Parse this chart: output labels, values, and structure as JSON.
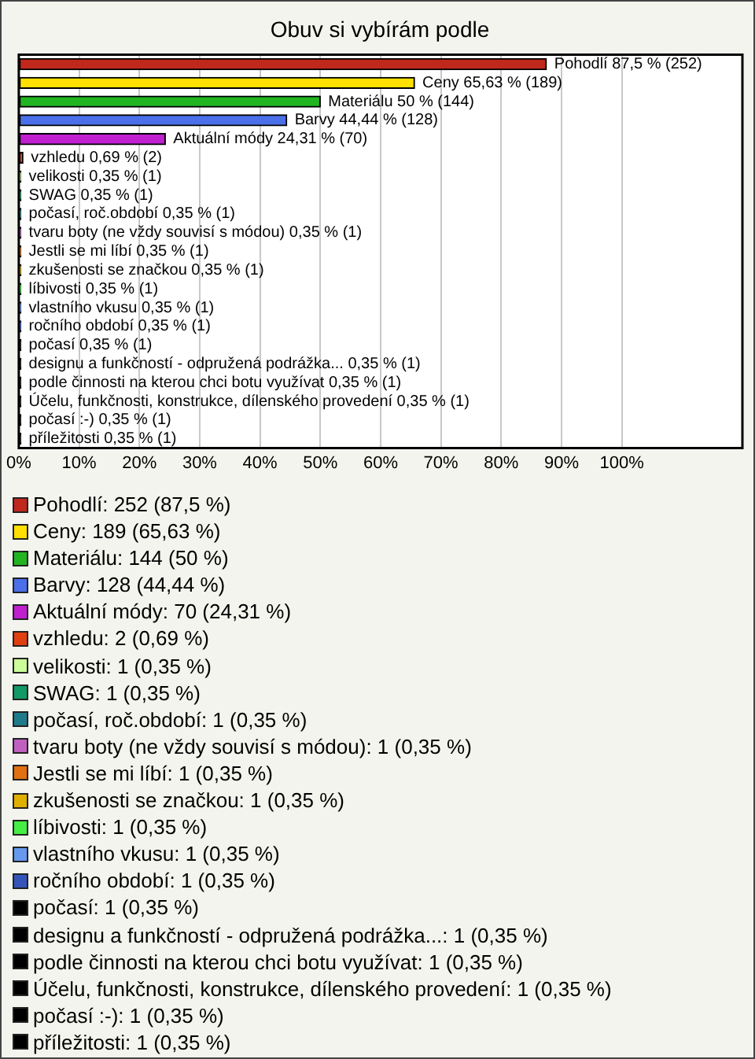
{
  "chart_data": {
    "type": "bar",
    "orientation": "horizontal",
    "title": "Obuv si vybírám podle",
    "categories": [
      "Pohodlí",
      "Ceny",
      "Materiálu",
      "Barvy",
      "Aktuální módy",
      "vzhledu",
      "velikosti",
      "SWAG",
      "počasí, roč.období",
      "tvaru boty (ne vždy souvisí s módou)",
      "Jestli se mi líbí",
      "zkušenosti se značkou",
      "líbivosti",
      "vlastního vkusu",
      "ročního období",
      "počasí",
      "designu a funkčností - odpružená podrážka...",
      "podle činnosti na kterou chci botu využívat",
      "Účelu, funkčnosti, konstrukce, dílenského provedení",
      "počasí :-)",
      "příležitosti"
    ],
    "series": [
      {
        "name": "Pohodlí: 252 (87,5 %)",
        "color": "#c0281c",
        "values": [
          87.5,
          null,
          null,
          null,
          null,
          null,
          null,
          null,
          null,
          null,
          null,
          null,
          null,
          null,
          null,
          null,
          null,
          null,
          null,
          null,
          null
        ],
        "value_labels": [
          "87,5 % (252)",
          null,
          null,
          null,
          null,
          null,
          null,
          null,
          null,
          null,
          null,
          null,
          null,
          null,
          null,
          null,
          null,
          null,
          null,
          null,
          null
        ]
      },
      {
        "name": "Ceny: 189 (65,63 %)",
        "color": "#ffe000",
        "values": [
          null,
          65.63,
          null,
          null,
          null,
          null,
          null,
          null,
          null,
          null,
          null,
          null,
          null,
          null,
          null,
          null,
          null,
          null,
          null,
          null,
          null
        ],
        "value_labels": [
          null,
          "65,63 % (189)",
          null,
          null,
          null,
          null,
          null,
          null,
          null,
          null,
          null,
          null,
          null,
          null,
          null,
          null,
          null,
          null,
          null,
          null,
          null
        ]
      },
      {
        "name": "Materiálu: 144 (50 %)",
        "color": "#22b522",
        "values": [
          null,
          null,
          50,
          null,
          null,
          null,
          null,
          null,
          null,
          null,
          null,
          null,
          null,
          null,
          null,
          null,
          null,
          null,
          null,
          null,
          null
        ],
        "value_labels": [
          null,
          null,
          "50 % (144)",
          null,
          null,
          null,
          null,
          null,
          null,
          null,
          null,
          null,
          null,
          null,
          null,
          null,
          null,
          null,
          null,
          null,
          null
        ]
      },
      {
        "name": "Barvy: 128 (44,44 %)",
        "color": "#4a6fe8",
        "values": [
          null,
          null,
          null,
          44.44,
          null,
          null,
          null,
          null,
          null,
          null,
          null,
          null,
          null,
          null,
          null,
          null,
          null,
          null,
          null,
          null,
          null
        ],
        "value_labels": [
          null,
          null,
          null,
          "44,44 % (128)",
          null,
          null,
          null,
          null,
          null,
          null,
          null,
          null,
          null,
          null,
          null,
          null,
          null,
          null,
          null,
          null,
          null
        ]
      },
      {
        "name": "Aktuální módy: 70 (24,31 %)",
        "color": "#c020d0",
        "values": [
          null,
          null,
          null,
          null,
          24.31,
          null,
          null,
          null,
          null,
          null,
          null,
          null,
          null,
          null,
          null,
          null,
          null,
          null,
          null,
          null,
          null
        ],
        "value_labels": [
          null,
          null,
          null,
          null,
          "24,31 % (70)",
          null,
          null,
          null,
          null,
          null,
          null,
          null,
          null,
          null,
          null,
          null,
          null,
          null,
          null,
          null,
          null
        ]
      },
      {
        "name": "vzhledu: 2 (0,69 %)",
        "color": "#e04010",
        "values": [
          null,
          null,
          null,
          null,
          null,
          0.69,
          null,
          null,
          null,
          null,
          null,
          null,
          null,
          null,
          null,
          null,
          null,
          null,
          null,
          null,
          null
        ],
        "value_labels": [
          null,
          null,
          null,
          null,
          null,
          "0,69 % (2)",
          null,
          null,
          null,
          null,
          null,
          null,
          null,
          null,
          null,
          null,
          null,
          null,
          null,
          null,
          null
        ]
      },
      {
        "name": "velikosti: 1 (0,35 %)",
        "color": "#ccff99",
        "values": [
          null,
          null,
          null,
          null,
          null,
          null,
          0.35,
          null,
          null,
          null,
          null,
          null,
          null,
          null,
          null,
          null,
          null,
          null,
          null,
          null,
          null
        ],
        "value_labels": [
          null,
          null,
          null,
          null,
          null,
          null,
          "0,35 % (1)",
          null,
          null,
          null,
          null,
          null,
          null,
          null,
          null,
          null,
          null,
          null,
          null,
          null,
          null
        ]
      },
      {
        "name": "SWAG: 1 (0,35 %)",
        "color": "#119966",
        "values": [
          null,
          null,
          null,
          null,
          null,
          null,
          null,
          0.35,
          null,
          null,
          null,
          null,
          null,
          null,
          null,
          null,
          null,
          null,
          null,
          null,
          null
        ],
        "value_labels": [
          null,
          null,
          null,
          null,
          null,
          null,
          null,
          "0,35 % (1)",
          null,
          null,
          null,
          null,
          null,
          null,
          null,
          null,
          null,
          null,
          null,
          null,
          null
        ]
      },
      {
        "name": "počasí, roč.období: 1 (0,35 %)",
        "color": "#1f7a8c",
        "values": [
          null,
          null,
          null,
          null,
          null,
          null,
          null,
          null,
          0.35,
          null,
          null,
          null,
          null,
          null,
          null,
          null,
          null,
          null,
          null,
          null,
          null
        ],
        "value_labels": [
          null,
          null,
          null,
          null,
          null,
          null,
          null,
          null,
          "0,35 % (1)",
          null,
          null,
          null,
          null,
          null,
          null,
          null,
          null,
          null,
          null,
          null,
          null
        ]
      },
      {
        "name": "tvaru boty (ne vždy souvisí s módou): 1 (0,35 %)",
        "color": "#c060c0",
        "values": [
          null,
          null,
          null,
          null,
          null,
          null,
          null,
          null,
          null,
          0.35,
          null,
          null,
          null,
          null,
          null,
          null,
          null,
          null,
          null,
          null,
          null
        ],
        "value_labels": [
          null,
          null,
          null,
          null,
          null,
          null,
          null,
          null,
          null,
          "0,35 % (1)",
          null,
          null,
          null,
          null,
          null,
          null,
          null,
          null,
          null,
          null,
          null
        ]
      },
      {
        "name": "Jestli se mi líbí: 1 (0,35 %)",
        "color": "#e07010",
        "values": [
          null,
          null,
          null,
          null,
          null,
          null,
          null,
          null,
          null,
          null,
          0.35,
          null,
          null,
          null,
          null,
          null,
          null,
          null,
          null,
          null,
          null
        ],
        "value_labels": [
          null,
          null,
          null,
          null,
          null,
          null,
          null,
          null,
          null,
          null,
          "0,35 % (1)",
          null,
          null,
          null,
          null,
          null,
          null,
          null,
          null,
          null,
          null
        ]
      },
      {
        "name": "zkušenosti se značkou: 1 (0,35 %)",
        "color": "#e0b000",
        "values": [
          null,
          null,
          null,
          null,
          null,
          null,
          null,
          null,
          null,
          null,
          null,
          0.35,
          null,
          null,
          null,
          null,
          null,
          null,
          null,
          null,
          null
        ],
        "value_labels": [
          null,
          null,
          null,
          null,
          null,
          null,
          null,
          null,
          null,
          null,
          null,
          "0,35 % (1)",
          null,
          null,
          null,
          null,
          null,
          null,
          null,
          null,
          null
        ]
      },
      {
        "name": "líbivosti: 1 (0,35 %)",
        "color": "#44ee44",
        "values": [
          null,
          null,
          null,
          null,
          null,
          null,
          null,
          null,
          null,
          null,
          null,
          null,
          0.35,
          null,
          null,
          null,
          null,
          null,
          null,
          null,
          null
        ],
        "value_labels": [
          null,
          null,
          null,
          null,
          null,
          null,
          null,
          null,
          null,
          null,
          null,
          null,
          "0,35 % (1)",
          null,
          null,
          null,
          null,
          null,
          null,
          null,
          null
        ]
      },
      {
        "name": "vlastního vkusu: 1 (0,35 %)",
        "color": "#6699ee",
        "values": [
          null,
          null,
          null,
          null,
          null,
          null,
          null,
          null,
          null,
          null,
          null,
          null,
          null,
          0.35,
          null,
          null,
          null,
          null,
          null,
          null,
          null
        ],
        "value_labels": [
          null,
          null,
          null,
          null,
          null,
          null,
          null,
          null,
          null,
          null,
          null,
          null,
          null,
          "0,35 % (1)",
          null,
          null,
          null,
          null,
          null,
          null,
          null
        ]
      },
      {
        "name": "ročního období: 1 (0,35 %)",
        "color": "#3355bb",
        "values": [
          null,
          null,
          null,
          null,
          null,
          null,
          null,
          null,
          null,
          null,
          null,
          null,
          null,
          null,
          0.35,
          null,
          null,
          null,
          null,
          null,
          null
        ],
        "value_labels": [
          null,
          null,
          null,
          null,
          null,
          null,
          null,
          null,
          null,
          null,
          null,
          null,
          null,
          null,
          "0,35 % (1)",
          null,
          null,
          null,
          null,
          null,
          null
        ]
      },
      {
        "name": "počasí: 1 (0,35 %)",
        "color": "#000000",
        "values": [
          null,
          null,
          null,
          null,
          null,
          null,
          null,
          null,
          null,
          null,
          null,
          null,
          null,
          null,
          null,
          0.35,
          null,
          null,
          null,
          null,
          null
        ],
        "value_labels": [
          null,
          null,
          null,
          null,
          null,
          null,
          null,
          null,
          null,
          null,
          null,
          null,
          null,
          null,
          null,
          "0,35 % (1)",
          null,
          null,
          null,
          null,
          null
        ]
      },
      {
        "name": "designu a funkčností - odpružená podrážka...: 1 (0,35 %)",
        "color": "#000000",
        "values": [
          null,
          null,
          null,
          null,
          null,
          null,
          null,
          null,
          null,
          null,
          null,
          null,
          null,
          null,
          null,
          null,
          0.35,
          null,
          null,
          null,
          null
        ],
        "value_labels": [
          null,
          null,
          null,
          null,
          null,
          null,
          null,
          null,
          null,
          null,
          null,
          null,
          null,
          null,
          null,
          null,
          "0,35 % (1)",
          null,
          null,
          null,
          null
        ]
      },
      {
        "name": "podle činnosti na kterou chci botu využívat: 1 (0,35 %)",
        "color": "#000000",
        "values": [
          null,
          null,
          null,
          null,
          null,
          null,
          null,
          null,
          null,
          null,
          null,
          null,
          null,
          null,
          null,
          null,
          null,
          0.35,
          null,
          null,
          null
        ],
        "value_labels": [
          null,
          null,
          null,
          null,
          null,
          null,
          null,
          null,
          null,
          null,
          null,
          null,
          null,
          null,
          null,
          null,
          null,
          "0,35 % (1)",
          null,
          null,
          null
        ]
      },
      {
        "name": "Účelu, funkčnosti, konstrukce, dílenského provedení: 1 (0,35 %)",
        "color": "#000000",
        "values": [
          null,
          null,
          null,
          null,
          null,
          null,
          null,
          null,
          null,
          null,
          null,
          null,
          null,
          null,
          null,
          null,
          null,
          null,
          0.35,
          null,
          null
        ],
        "value_labels": [
          null,
          null,
          null,
          null,
          null,
          null,
          null,
          null,
          null,
          null,
          null,
          null,
          null,
          null,
          null,
          null,
          null,
          null,
          "0,35 % (1)",
          null,
          null
        ]
      },
      {
        "name": "počasí :-): 1 (0,35 %)",
        "color": "#000000",
        "values": [
          null,
          null,
          null,
          null,
          null,
          null,
          null,
          null,
          null,
          null,
          null,
          null,
          null,
          null,
          null,
          null,
          null,
          null,
          null,
          0.35,
          null
        ],
        "value_labels": [
          null,
          null,
          null,
          null,
          null,
          null,
          null,
          null,
          null,
          null,
          null,
          null,
          null,
          null,
          null,
          null,
          null,
          null,
          null,
          "0,35 % (1)",
          null
        ]
      },
      {
        "name": "příležitosti: 1 (0,35 %)",
        "color": "#000000",
        "values": [
          null,
          null,
          null,
          null,
          null,
          null,
          null,
          null,
          null,
          null,
          null,
          null,
          null,
          null,
          null,
          null,
          null,
          null,
          null,
          null,
          0.35
        ],
        "value_labels": [
          null,
          null,
          null,
          null,
          null,
          null,
          null,
          null,
          null,
          null,
          null,
          null,
          null,
          null,
          null,
          null,
          null,
          null,
          null,
          null,
          "0,35 % (1)"
        ]
      }
    ],
    "xlim": [
      0,
      120
    ],
    "xticks": [
      {
        "value": 0,
        "label": "0%"
      },
      {
        "value": 10,
        "label": "10%"
      },
      {
        "value": 20,
        "label": "20%"
      },
      {
        "value": 30,
        "label": "30%"
      },
      {
        "value": 40,
        "label": "40%"
      },
      {
        "value": 50,
        "label": "50%"
      },
      {
        "value": 60,
        "label": "60%"
      },
      {
        "value": 70,
        "label": "70%"
      },
      {
        "value": 80,
        "label": "80%"
      },
      {
        "value": 90,
        "label": "90%"
      },
      {
        "value": 100,
        "label": "100%"
      }
    ],
    "grid": "x",
    "tick_labels": "x",
    "legend": "bottom"
  }
}
